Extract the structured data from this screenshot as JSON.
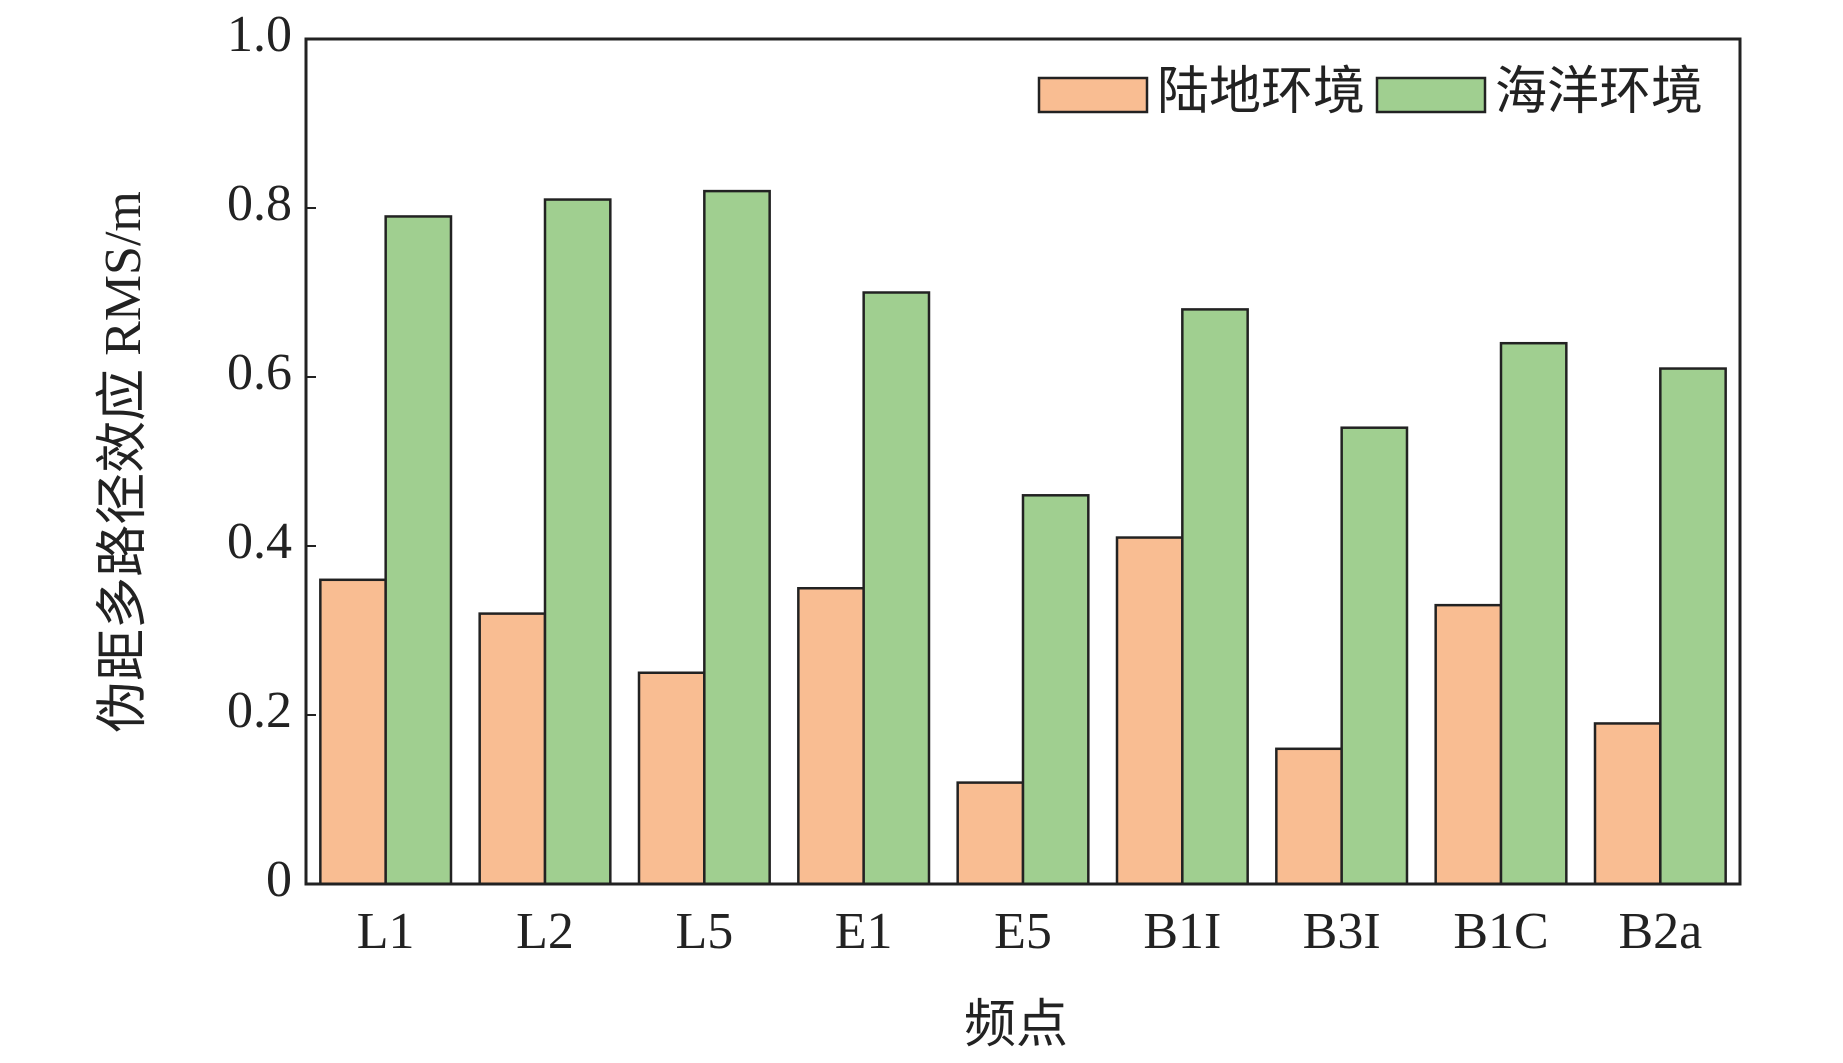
{
  "chart_data": {
    "type": "bar",
    "x_label": "频点",
    "y_label": "伪距多路径效应 RMS/m",
    "categories": [
      "L1",
      "L2",
      "L5",
      "E1",
      "E5",
      "B1I",
      "B3I",
      "B1C",
      "B2a"
    ],
    "series": [
      {
        "name": "陆地环境",
        "color": "#f9bd92",
        "values": [
          0.36,
          0.32,
          0.25,
          0.35,
          0.12,
          0.41,
          0.16,
          0.33,
          0.19
        ]
      },
      {
        "name": "海洋环境",
        "color": "#a0cf90",
        "values": [
          0.79,
          0.81,
          0.82,
          0.7,
          0.46,
          0.68,
          0.54,
          0.64,
          0.61
        ]
      }
    ],
    "ylim": [
      0,
      1
    ],
    "yticks": [
      0,
      0.2,
      0.4,
      0.6,
      0.8,
      {
        "value": 1,
        "label": "1.0"
      }
    ],
    "legend": "upper-right"
  }
}
